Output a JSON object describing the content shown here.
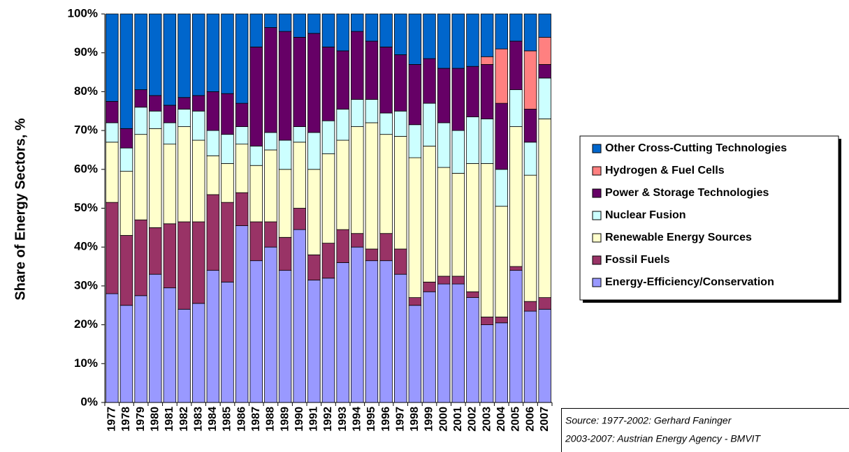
{
  "chart_data": {
    "type": "stacked_bar",
    "y_label": "Share of Energy Sectors, %",
    "categories": [
      "1977",
      "1978",
      "1979",
      "1980",
      "1981",
      "1982",
      "1983",
      "1984",
      "1985",
      "1986",
      "1987",
      "1988",
      "1989",
      "1990",
      "1991",
      "1992",
      "1993",
      "1994",
      "1995",
      "1996",
      "1997",
      "1998",
      "1999",
      "2000",
      "2001",
      "2002",
      "2003",
      "2004",
      "2005",
      "2006",
      "2007"
    ],
    "ylim": [
      0,
      100
    ],
    "yticks": [
      {
        "value": 0,
        "label": "0%"
      },
      {
        "value": 10,
        "label": "10%"
      },
      {
        "value": 20,
        "label": "20%"
      },
      {
        "value": 30,
        "label": "30%"
      },
      {
        "value": 40,
        "label": "40%"
      },
      {
        "value": 50,
        "label": "50%"
      },
      {
        "value": 60,
        "label": "60%"
      },
      {
        "value": 70,
        "label": "70%"
      },
      {
        "value": 80,
        "label": "80%"
      },
      {
        "value": 90,
        "label": "90%"
      },
      {
        "value": 100,
        "label": "100%"
      }
    ],
    "series": [
      {
        "name": "Energy-Efficiency/Conservation",
        "color": "#9999ff",
        "values": [
          28,
          25,
          27.5,
          33,
          29.5,
          24,
          25.5,
          34,
          31,
          45.5,
          36.5,
          40,
          34,
          44.5,
          31.5,
          32,
          36,
          40,
          36.5,
          36.5,
          33,
          25,
          28.5,
          30.5,
          30.5,
          27,
          20,
          20.5,
          34,
          23.5,
          24
        ]
      },
      {
        "name": "Fossil Fuels",
        "color": "#993366",
        "values": [
          23.5,
          18,
          19.5,
          12,
          16.5,
          22.5,
          21,
          19.5,
          20.5,
          8.5,
          10,
          6.5,
          8.5,
          5.5,
          6.5,
          9,
          8.5,
          3.5,
          3,
          7,
          6.5,
          2,
          2.5,
          2,
          2,
          1.5,
          2,
          1.5,
          1,
          2.5,
          3
        ]
      },
      {
        "name": "Renewable Energy Sources",
        "color": "#ffffcc",
        "values": [
          15.5,
          16.5,
          22,
          25.5,
          20.5,
          24.5,
          21,
          10,
          10,
          12.5,
          14.5,
          18.5,
          17.5,
          17,
          22,
          23,
          23,
          27.5,
          32.5,
          25.5,
          29,
          36,
          35,
          28,
          26.5,
          33,
          39.5,
          28.5,
          36,
          32.5,
          46
        ]
      },
      {
        "name": "Nuclear Fusion",
        "color": "#ccffff",
        "values": [
          5,
          6,
          7,
          4.5,
          5.5,
          4.5,
          7.5,
          6.5,
          7.5,
          4.5,
          5,
          4.5,
          7.5,
          4,
          9.5,
          8.5,
          8,
          7,
          6,
          5.5,
          6.5,
          8.5,
          11,
          11.5,
          11,
          12,
          11.5,
          9.5,
          9.5,
          8.5,
          10.5
        ]
      },
      {
        "name": "Power & Storage Technologies",
        "color": "#660066",
        "values": [
          5.5,
          5,
          4.5,
          4,
          4.5,
          3,
          4,
          10,
          10.5,
          6,
          25.5,
          27,
          28,
          23,
          25.5,
          19,
          15,
          17.5,
          15,
          17,
          14.5,
          15.5,
          11.5,
          14,
          16,
          13,
          14,
          17,
          12.5,
          8.5,
          3.5
        ]
      },
      {
        "name": "Hydrogen & Fuel Cells",
        "color": "#ff8080",
        "values": [
          0,
          0,
          0,
          0,
          0,
          0,
          0,
          0,
          0,
          0,
          0,
          0,
          0,
          0,
          0,
          0,
          0,
          0,
          0,
          0,
          0,
          0,
          0,
          0,
          0,
          0,
          2,
          14,
          0,
          15,
          7
        ]
      },
      {
        "name": "Other Cross-Cutting Technologies",
        "color": "#0066cc",
        "values": [
          22.5,
          29.5,
          19.5,
          21,
          23.5,
          21.5,
          21,
          20,
          20.5,
          23,
          8.5,
          3.5,
          4.5,
          6,
          5,
          8.5,
          9.5,
          4.5,
          7,
          8.5,
          10.5,
          13,
          11.5,
          14,
          14,
          13.5,
          11,
          9,
          7,
          9.5,
          6
        ]
      }
    ],
    "source": [
      "Source: 1977-2002: Gerhard Faninger",
      "2003-2007: Austrian Energy Agency - BMVIT"
    ]
  }
}
